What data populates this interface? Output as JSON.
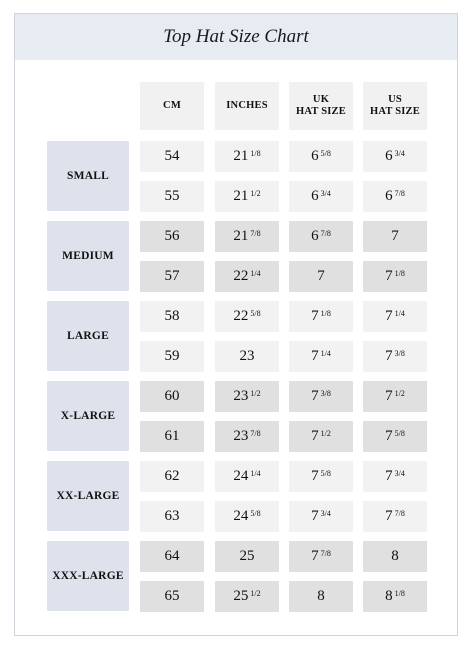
{
  "title": "Top Hat Size Chart",
  "columns": [
    "CM",
    "INCHES",
    "UK\nHAT SIZE",
    "US\nHAT SIZE"
  ],
  "groups": [
    {
      "label": "SMALL",
      "rows": [
        [
          {
            "w": "54",
            "f": ""
          },
          {
            "w": "21",
            "f": "1/8"
          },
          {
            "w": "6",
            "f": "5/8"
          },
          {
            "w": "6",
            "f": "3/4"
          }
        ],
        [
          {
            "w": "55",
            "f": ""
          },
          {
            "w": "21",
            "f": "1/2"
          },
          {
            "w": "6",
            "f": "3/4"
          },
          {
            "w": "6",
            "f": "7/8"
          }
        ]
      ]
    },
    {
      "label": "MEDIUM",
      "rows": [
        [
          {
            "w": "56",
            "f": ""
          },
          {
            "w": "21",
            "f": "7/8"
          },
          {
            "w": "6",
            "f": "7/8"
          },
          {
            "w": "7",
            "f": ""
          }
        ],
        [
          {
            "w": "57",
            "f": ""
          },
          {
            "w": "22",
            "f": "1/4"
          },
          {
            "w": "7",
            "f": ""
          },
          {
            "w": "7",
            "f": "1/8"
          }
        ]
      ]
    },
    {
      "label": "LARGE",
      "rows": [
        [
          {
            "w": "58",
            "f": ""
          },
          {
            "w": "22",
            "f": "5/8"
          },
          {
            "w": "7",
            "f": "1/8"
          },
          {
            "w": "7",
            "f": "1/4"
          }
        ],
        [
          {
            "w": "59",
            "f": ""
          },
          {
            "w": "23",
            "f": ""
          },
          {
            "w": "7",
            "f": "1/4"
          },
          {
            "w": "7",
            "f": "3/8"
          }
        ]
      ]
    },
    {
      "label": "X-LARGE",
      "rows": [
        [
          {
            "w": "60",
            "f": ""
          },
          {
            "w": "23",
            "f": "1/2"
          },
          {
            "w": "7",
            "f": "3/8"
          },
          {
            "w": "7",
            "f": "1/2"
          }
        ],
        [
          {
            "w": "61",
            "f": ""
          },
          {
            "w": "23",
            "f": "7/8"
          },
          {
            "w": "7",
            "f": "1/2"
          },
          {
            "w": "7",
            "f": "5/8"
          }
        ]
      ]
    },
    {
      "label": "XX-LARGE",
      "rows": [
        [
          {
            "w": "62",
            "f": ""
          },
          {
            "w": "24",
            "f": "1/4"
          },
          {
            "w": "7",
            "f": "5/8"
          },
          {
            "w": "7",
            "f": "3/4"
          }
        ],
        [
          {
            "w": "63",
            "f": ""
          },
          {
            "w": "24",
            "f": "5/8"
          },
          {
            "w": "7",
            "f": "3/4"
          },
          {
            "w": "7",
            "f": "7/8"
          }
        ]
      ]
    },
    {
      "label": "XXX-LARGE",
      "rows": [
        [
          {
            "w": "64",
            "f": ""
          },
          {
            "w": "25",
            "f": ""
          },
          {
            "w": "7",
            "f": "7/8"
          },
          {
            "w": "8",
            "f": ""
          }
        ],
        [
          {
            "w": "65",
            "f": ""
          },
          {
            "w": "25",
            "f": "1/2"
          },
          {
            "w": "8",
            "f": ""
          },
          {
            "w": "8",
            "f": "1/8"
          }
        ]
      ]
    }
  ],
  "colors": {
    "title_bar": "#e7ebf2",
    "size_label_bg": "#dde2ec",
    "cell_light": "#f2f2f2",
    "cell_dark": "#e0e0e0"
  }
}
